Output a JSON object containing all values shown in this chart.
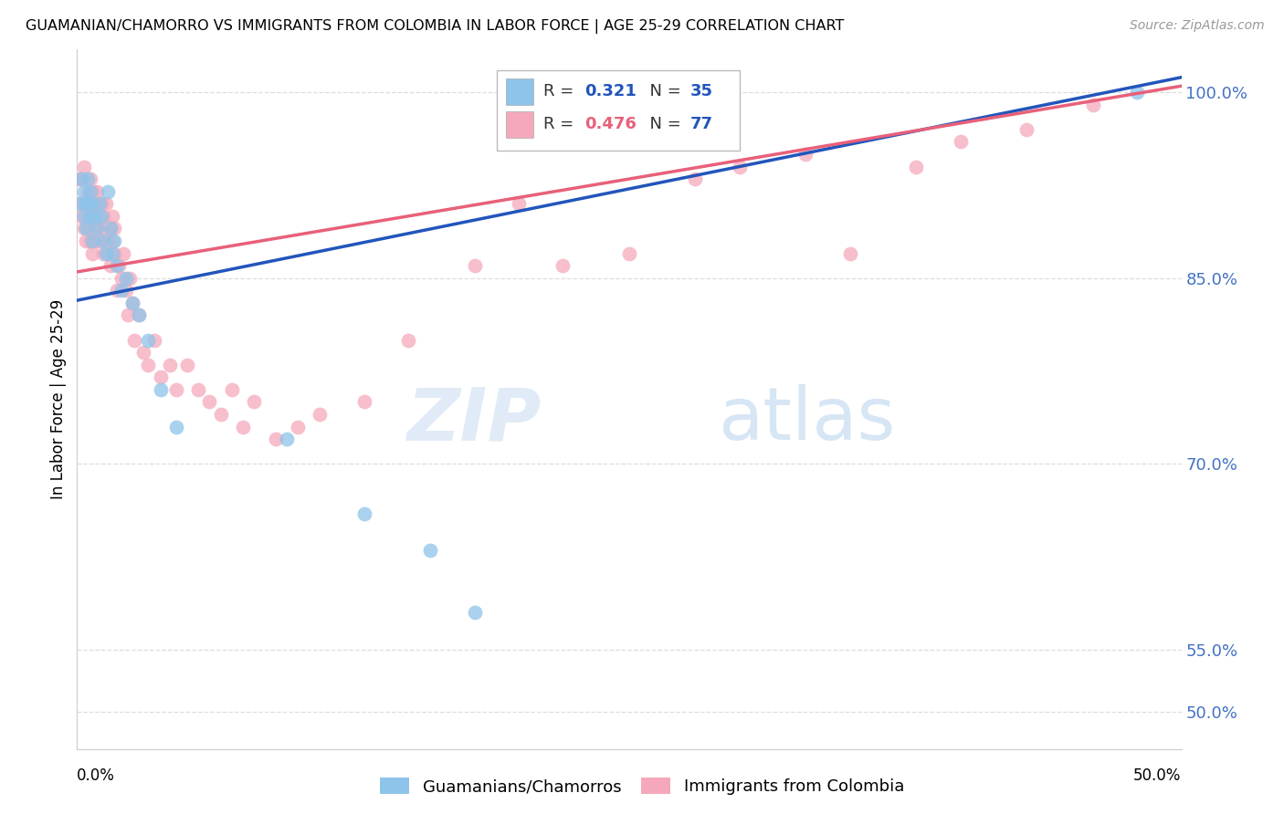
{
  "title": "GUAMANIAN/CHAMORRO VS IMMIGRANTS FROM COLOMBIA IN LABOR FORCE | AGE 25-29 CORRELATION CHART",
  "source": "Source: ZipAtlas.com",
  "ylabel": "In Labor Force | Age 25-29",
  "xmin": 0.0,
  "xmax": 0.5,
  "ymin": 0.47,
  "ymax": 1.035,
  "blue_color": "#8EC4EA",
  "pink_color": "#F5A8BC",
  "blue_line_color": "#2255BB",
  "pink_line_color": "#E8607A",
  "pink_line_dashed_color": "#F0A0B8",
  "R_blue": 0.321,
  "N_blue": 35,
  "R_pink": 0.476,
  "N_pink": 77,
  "blue_scatter_x": [
    0.001,
    0.002,
    0.003,
    0.003,
    0.004,
    0.004,
    0.005,
    0.005,
    0.006,
    0.006,
    0.007,
    0.007,
    0.008,
    0.009,
    0.01,
    0.011,
    0.012,
    0.013,
    0.014,
    0.015,
    0.016,
    0.017,
    0.018,
    0.02,
    0.022,
    0.025,
    0.028,
    0.032,
    0.038,
    0.045,
    0.095,
    0.13,
    0.16,
    0.18,
    0.48
  ],
  "blue_scatter_y": [
    0.91,
    0.93,
    0.9,
    0.92,
    0.91,
    0.89,
    0.91,
    0.93,
    0.9,
    0.92,
    0.91,
    0.88,
    0.9,
    0.89,
    0.91,
    0.9,
    0.88,
    0.87,
    0.92,
    0.89,
    0.87,
    0.88,
    0.86,
    0.84,
    0.85,
    0.83,
    0.82,
    0.8,
    0.76,
    0.73,
    0.72,
    0.66,
    0.63,
    0.58,
    1.0
  ],
  "pink_scatter_x": [
    0.001,
    0.001,
    0.002,
    0.002,
    0.003,
    0.003,
    0.003,
    0.004,
    0.004,
    0.005,
    0.005,
    0.005,
    0.006,
    0.006,
    0.006,
    0.007,
    0.007,
    0.007,
    0.008,
    0.008,
    0.009,
    0.009,
    0.01,
    0.01,
    0.011,
    0.011,
    0.012,
    0.012,
    0.013,
    0.013,
    0.014,
    0.015,
    0.015,
    0.016,
    0.016,
    0.017,
    0.017,
    0.018,
    0.019,
    0.02,
    0.021,
    0.022,
    0.023,
    0.024,
    0.025,
    0.026,
    0.028,
    0.03,
    0.032,
    0.035,
    0.038,
    0.042,
    0.045,
    0.05,
    0.055,
    0.06,
    0.065,
    0.07,
    0.075,
    0.08,
    0.09,
    0.1,
    0.11,
    0.13,
    0.15,
    0.18,
    0.2,
    0.22,
    0.25,
    0.28,
    0.3,
    0.33,
    0.35,
    0.38,
    0.4,
    0.43,
    0.46
  ],
  "pink_scatter_y": [
    0.91,
    0.93,
    0.9,
    0.93,
    0.89,
    0.91,
    0.94,
    0.88,
    0.91,
    0.9,
    0.92,
    0.89,
    0.91,
    0.88,
    0.93,
    0.9,
    0.87,
    0.92,
    0.88,
    0.91,
    0.89,
    0.92,
    0.88,
    0.9,
    0.89,
    0.91,
    0.87,
    0.9,
    0.88,
    0.91,
    0.87,
    0.89,
    0.86,
    0.88,
    0.9,
    0.87,
    0.89,
    0.84,
    0.86,
    0.85,
    0.87,
    0.84,
    0.82,
    0.85,
    0.83,
    0.8,
    0.82,
    0.79,
    0.78,
    0.8,
    0.77,
    0.78,
    0.76,
    0.78,
    0.76,
    0.75,
    0.74,
    0.76,
    0.73,
    0.75,
    0.72,
    0.73,
    0.74,
    0.75,
    0.8,
    0.86,
    0.91,
    0.86,
    0.87,
    0.93,
    0.94,
    0.95,
    0.87,
    0.94,
    0.96,
    0.97,
    0.99
  ],
  "watermark_zip": "ZIP",
  "watermark_atlas": "atlas",
  "background_color": "#FFFFFF",
  "grid_color": "#DDDDDD",
  "ytick_vals": [
    0.5,
    0.55,
    0.7,
    0.85,
    1.0
  ],
  "ytick_labels": [
    "50.0%",
    "55.0%",
    "70.0%",
    "85.0%",
    "100.0%"
  ]
}
